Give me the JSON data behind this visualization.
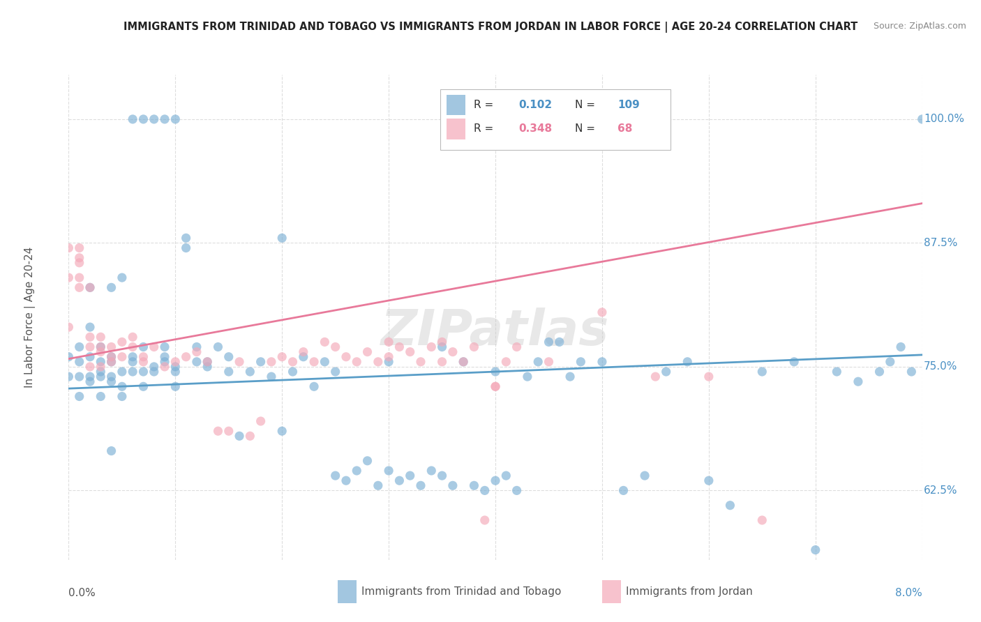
{
  "title": "IMMIGRANTS FROM TRINIDAD AND TOBAGO VS IMMIGRANTS FROM JORDAN IN LABOR FORCE | AGE 20-24 CORRELATION CHART",
  "source": "Source: ZipAtlas.com",
  "ylabel": "In Labor Force | Age 20-24",
  "blue_label": "Immigrants from Trinidad and Tobago",
  "pink_label": "Immigrants from Jordan",
  "blue_R": "0.102",
  "blue_N": "109",
  "pink_R": "0.348",
  "pink_N": "68",
  "xmin": 0.0,
  "xmax": 0.08,
  "ymin": 0.555,
  "ymax": 1.045,
  "yticks": [
    0.625,
    0.75,
    0.875,
    1.0
  ],
  "ytick_labels": [
    "62.5%",
    "75.0%",
    "87.5%",
    "100.0%"
  ],
  "blue_trend_x": [
    0.0,
    0.08
  ],
  "blue_trend_y": [
    0.728,
    0.762
  ],
  "pink_trend_x": [
    0.0,
    0.08
  ],
  "pink_trend_y": [
    0.758,
    0.915
  ],
  "blue_color": "#7bafd4",
  "pink_color": "#f4a8b8",
  "blue_line_color": "#5a9ec8",
  "pink_line_color": "#e8799a",
  "grid_color": "#dddddd",
  "background_color": "#ffffff",
  "watermark": "ZIPatlas",
  "blue_scatter_x": [
    0.0,
    0.0,
    0.001,
    0.001,
    0.001,
    0.001,
    0.002,
    0.002,
    0.002,
    0.002,
    0.002,
    0.003,
    0.003,
    0.003,
    0.003,
    0.004,
    0.004,
    0.004,
    0.004,
    0.004,
    0.005,
    0.005,
    0.005,
    0.006,
    0.006,
    0.006,
    0.007,
    0.007,
    0.007,
    0.008,
    0.008,
    0.009,
    0.009,
    0.009,
    0.01,
    0.01,
    0.01,
    0.011,
    0.011,
    0.012,
    0.012,
    0.013,
    0.013,
    0.014,
    0.015,
    0.016,
    0.017,
    0.018,
    0.019,
    0.02,
    0.021,
    0.022,
    0.023,
    0.024,
    0.025,
    0.026,
    0.027,
    0.028,
    0.029,
    0.03,
    0.031,
    0.032,
    0.033,
    0.034,
    0.035,
    0.036,
    0.037,
    0.038,
    0.039,
    0.04,
    0.041,
    0.042,
    0.043,
    0.044,
    0.045,
    0.046,
    0.047,
    0.048,
    0.05,
    0.052,
    0.054,
    0.056,
    0.058,
    0.06,
    0.062,
    0.065,
    0.068,
    0.07,
    0.072,
    0.074,
    0.076,
    0.077,
    0.078,
    0.079,
    0.08,
    0.003,
    0.004,
    0.005,
    0.006,
    0.007,
    0.008,
    0.009,
    0.01,
    0.015,
    0.02,
    0.025,
    0.03,
    0.035,
    0.04
  ],
  "blue_scatter_y": [
    0.74,
    0.76,
    0.72,
    0.755,
    0.77,
    0.74,
    0.735,
    0.74,
    0.76,
    0.79,
    0.83,
    0.74,
    0.72,
    0.755,
    0.77,
    0.735,
    0.74,
    0.76,
    0.755,
    0.665,
    0.72,
    0.745,
    0.73,
    0.745,
    0.76,
    0.755,
    0.77,
    0.745,
    0.73,
    0.745,
    0.75,
    0.755,
    0.77,
    0.76,
    0.73,
    0.745,
    0.75,
    0.87,
    0.88,
    0.755,
    0.77,
    0.75,
    0.755,
    0.77,
    0.76,
    0.68,
    0.745,
    0.755,
    0.74,
    0.685,
    0.745,
    0.76,
    0.73,
    0.755,
    0.64,
    0.635,
    0.645,
    0.655,
    0.63,
    0.645,
    0.635,
    0.64,
    0.63,
    0.645,
    0.64,
    0.63,
    0.755,
    0.63,
    0.625,
    0.635,
    0.64,
    0.625,
    0.74,
    0.755,
    0.775,
    0.775,
    0.74,
    0.755,
    0.755,
    0.625,
    0.64,
    0.745,
    0.755,
    0.635,
    0.61,
    0.745,
    0.755,
    0.565,
    0.745,
    0.735,
    0.745,
    0.755,
    0.77,
    0.745,
    1.0,
    0.745,
    0.83,
    0.84,
    1.0,
    1.0,
    1.0,
    1.0,
    1.0,
    0.745,
    0.88,
    0.745,
    0.755,
    0.77,
    0.745
  ],
  "pink_scatter_x": [
    0.0,
    0.0,
    0.0,
    0.001,
    0.001,
    0.001,
    0.001,
    0.001,
    0.002,
    0.002,
    0.002,
    0.002,
    0.003,
    0.003,
    0.003,
    0.003,
    0.004,
    0.004,
    0.004,
    0.005,
    0.005,
    0.006,
    0.006,
    0.007,
    0.007,
    0.008,
    0.009,
    0.01,
    0.011,
    0.012,
    0.013,
    0.014,
    0.015,
    0.016,
    0.017,
    0.018,
    0.019,
    0.02,
    0.021,
    0.022,
    0.023,
    0.024,
    0.025,
    0.026,
    0.027,
    0.028,
    0.029,
    0.03,
    0.031,
    0.032,
    0.033,
    0.034,
    0.035,
    0.036,
    0.037,
    0.038,
    0.039,
    0.04,
    0.041,
    0.042,
    0.05,
    0.06,
    0.065,
    0.035,
    0.04,
    0.045,
    0.055,
    0.03
  ],
  "pink_scatter_y": [
    0.84,
    0.87,
    0.79,
    0.83,
    0.84,
    0.855,
    0.86,
    0.87,
    0.75,
    0.77,
    0.78,
    0.83,
    0.75,
    0.765,
    0.77,
    0.78,
    0.755,
    0.76,
    0.77,
    0.76,
    0.775,
    0.77,
    0.78,
    0.755,
    0.76,
    0.77,
    0.75,
    0.755,
    0.76,
    0.765,
    0.755,
    0.685,
    0.685,
    0.755,
    0.68,
    0.695,
    0.755,
    0.76,
    0.755,
    0.765,
    0.755,
    0.775,
    0.77,
    0.76,
    0.755,
    0.765,
    0.755,
    0.775,
    0.77,
    0.765,
    0.755,
    0.77,
    0.775,
    0.765,
    0.755,
    0.77,
    0.595,
    0.73,
    0.755,
    0.77,
    0.805,
    0.74,
    0.595,
    0.755,
    0.73,
    0.755,
    0.74,
    0.76
  ]
}
